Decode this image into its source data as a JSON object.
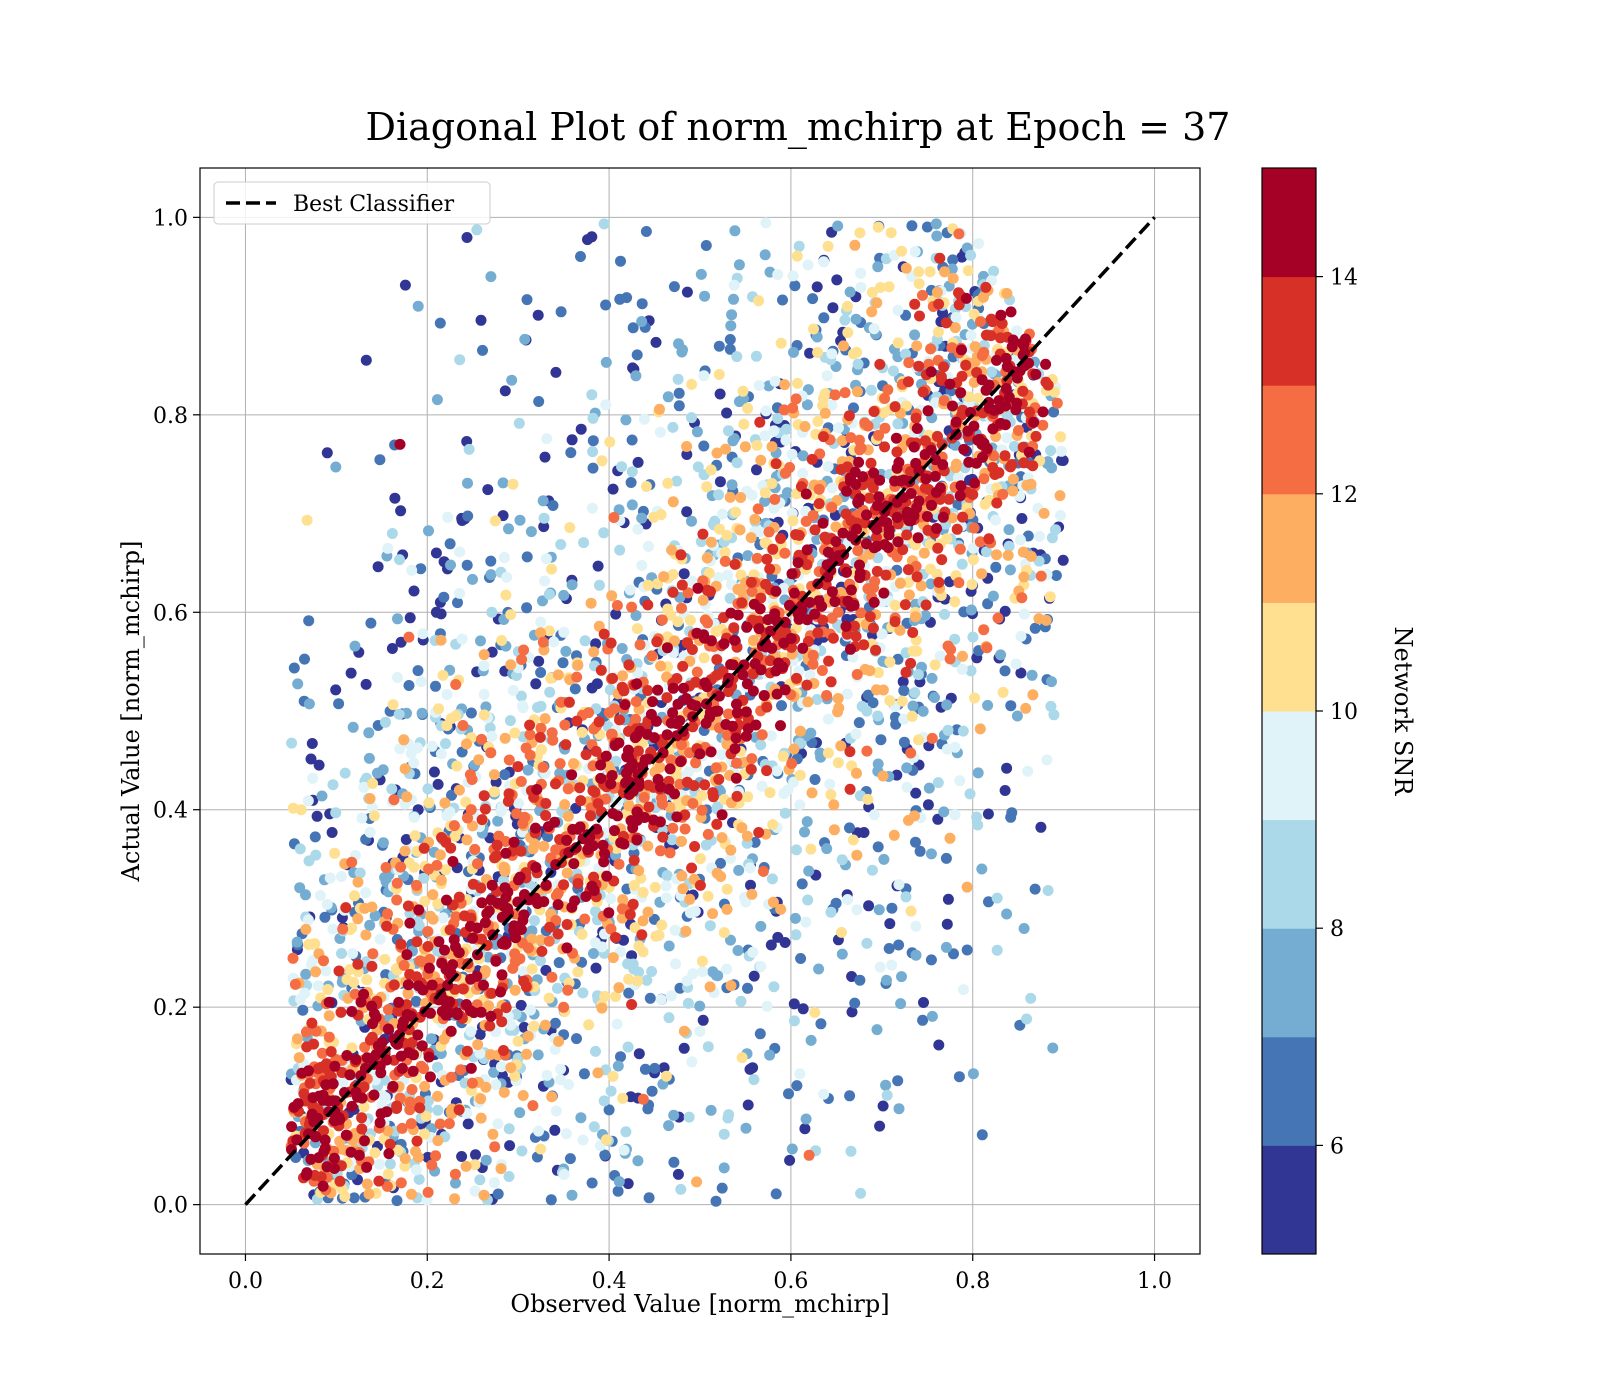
{
  "chart_data": {
    "type": "scatter",
    "title": "Diagonal Plot of norm_mchirp at Epoch = 37",
    "xlabel": "Observed Value [norm_mchirp]",
    "ylabel": "Actual Value [norm_mchirp]",
    "xlim": [
      -0.05,
      1.05
    ],
    "ylim": [
      -0.05,
      1.05
    ],
    "xticks": [
      "0.0",
      "0.2",
      "0.4",
      "0.6",
      "0.8",
      "1.0"
    ],
    "yticks": [
      "0.0",
      "0.2",
      "0.4",
      "0.6",
      "0.8",
      "1.0"
    ],
    "grid": true,
    "legend": {
      "placement": "top-left",
      "entries": [
        "Best Classifier"
      ]
    },
    "reference_line": {
      "name": "Best Classifier",
      "style": "dashed",
      "color": "#000000",
      "x": [
        0.0,
        1.0
      ],
      "y": [
        0.0,
        1.0
      ]
    },
    "colorbar": {
      "label": "Network SNR",
      "range": [
        5,
        15
      ],
      "ticks": [
        "6",
        "8",
        "10",
        "12",
        "14"
      ],
      "bands": [
        "#313695",
        "#4575b4",
        "#74add1",
        "#abd9e9",
        "#e0f3f8",
        "#fee090",
        "#fdae61",
        "#f46d43",
        "#d73027",
        "#a50026"
      ]
    },
    "point_cloud": {
      "description_source": "approximate density of scattered points",
      "x_range": [
        0.05,
        0.9
      ],
      "y_range": [
        0.0,
        1.0
      ],
      "high_snr_trend": "points near the diagonal y = x",
      "low_snr_spread": "points far above and below the diagonal",
      "outliers": [
        {
          "x": 0.17,
          "y": 0.77,
          "snr": 14
        },
        {
          "x": 0.19,
          "y": 0.91,
          "snr": 7
        },
        {
          "x": 0.27,
          "y": 0.94,
          "snr": 7
        },
        {
          "x": 0.21,
          "y": 0.66,
          "snr": 5
        },
        {
          "x": 0.21,
          "y": 0.6,
          "snr": 5
        },
        {
          "x": 0.19,
          "y": 0.4,
          "snr": 5
        },
        {
          "x": 0.81,
          "y": 0.34,
          "snr": 7
        },
        {
          "x": 0.86,
          "y": 0.66,
          "snr": 7
        },
        {
          "x": 0.62,
          "y": 0.05,
          "snr": 12
        }
      ]
    }
  }
}
